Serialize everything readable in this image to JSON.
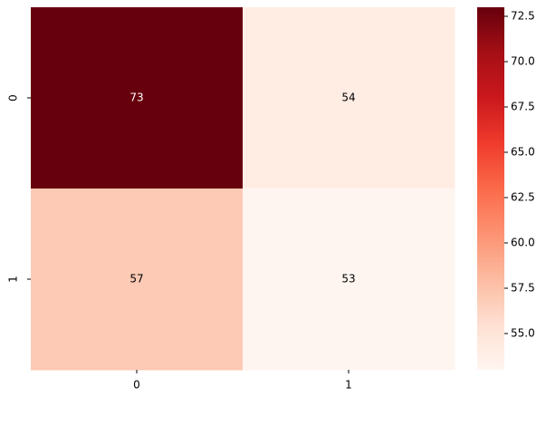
{
  "chart_data": {
    "type": "heatmap",
    "x_categories": [
      "0",
      "1"
    ],
    "y_categories": [
      "0",
      "1"
    ],
    "values": [
      [
        73,
        54
      ],
      [
        57,
        53
      ]
    ],
    "colorscale": [
      "#fff5f0",
      "#fee0d2",
      "#fcbba1",
      "#fc9272",
      "#fb6a4a",
      "#ef3b2c",
      "#cb181d",
      "#a50f15",
      "#67000d"
    ],
    "zlim": [
      53,
      73
    ],
    "zticks": [
      {
        "value": 55,
        "label": "55.0"
      },
      {
        "value": 57.5,
        "label": "57.5"
      },
      {
        "value": 60,
        "label": "60.0"
      },
      {
        "value": 62.5,
        "label": "62.5"
      },
      {
        "value": 65,
        "label": "65.0"
      },
      {
        "value": 67.5,
        "label": "67.5"
      },
      {
        "value": 70,
        "label": "70.0"
      },
      {
        "value": 72.5,
        "label": "72.5"
      }
    ]
  }
}
